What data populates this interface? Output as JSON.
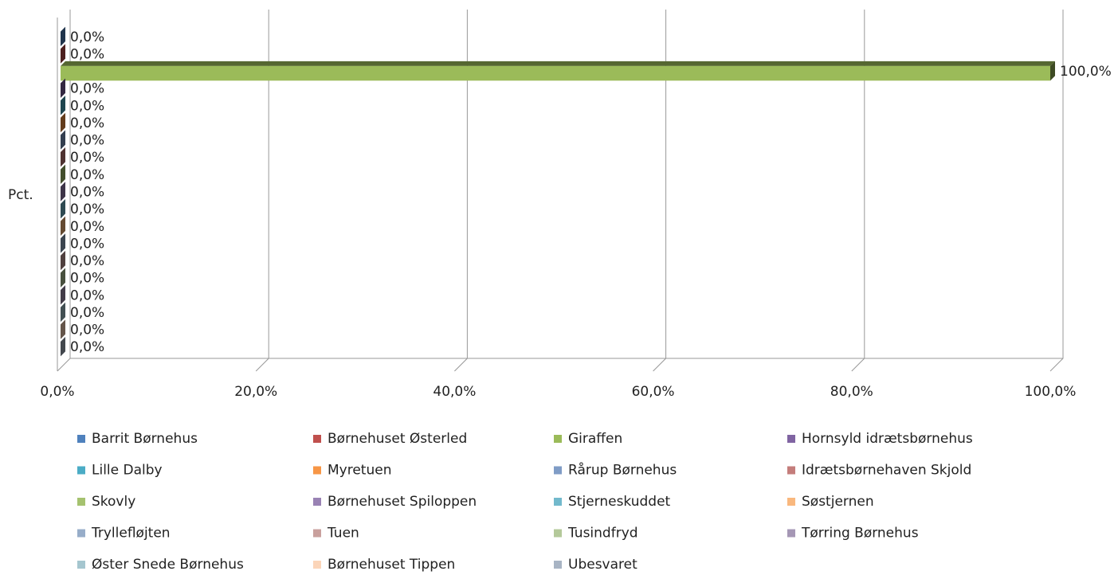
{
  "chart_data": {
    "type": "bar",
    "orientation": "horizontal",
    "ylabel": "Pct.",
    "categories": [
      null
    ],
    "xlim": [
      0,
      100
    ],
    "xticks": [
      {
        "value": 0,
        "label": "0,0%"
      },
      {
        "value": 20,
        "label": "20,0%"
      },
      {
        "value": 40,
        "label": "40,0%"
      },
      {
        "value": 60,
        "label": "60,0%"
      },
      {
        "value": 80,
        "label": "80,0%"
      },
      {
        "value": 100,
        "label": "100,0%"
      }
    ],
    "grid": true,
    "legend": "bottom",
    "series": [
      {
        "name": "Barrit Børnehus",
        "color": "#4f81bd",
        "values": [
          0
        ],
        "value_labels": [
          "0,0%"
        ]
      },
      {
        "name": "Børnehuset Østerled",
        "color": "#c0504d",
        "values": [
          0
        ],
        "value_labels": [
          "0,0%"
        ]
      },
      {
        "name": "Giraffen",
        "color": "#9bbb59",
        "values": [
          100
        ],
        "value_labels": [
          "100,0%"
        ]
      },
      {
        "name": "Hornsyld idrætsbørnehus",
        "color": "#8064a2",
        "values": [
          0
        ],
        "value_labels": [
          "0,0%"
        ]
      },
      {
        "name": "Lille Dalby",
        "color": "#4bacc6",
        "values": [
          0
        ],
        "value_labels": [
          "0,0%"
        ]
      },
      {
        "name": "Myretuen",
        "color": "#f79646",
        "values": [
          0
        ],
        "value_labels": [
          "0,0%"
        ]
      },
      {
        "name": "Rårup Børnehus",
        "color": "#7f9cc6",
        "values": [
          0
        ],
        "value_labels": [
          "0,0%"
        ]
      },
      {
        "name": "Idrætsbørnehaven Skjold",
        "color": "#c47d7b",
        "values": [
          0
        ],
        "value_labels": [
          "0,0%"
        ]
      },
      {
        "name": "Skovly",
        "color": "#a5c26f",
        "values": [
          0
        ],
        "value_labels": [
          "0,0%"
        ]
      },
      {
        "name": "Børnehuset Spiloppen",
        "color": "#9982b4",
        "values": [
          0
        ],
        "value_labels": [
          "0,0%"
        ]
      },
      {
        "name": "Stjerneskuddet",
        "color": "#72b9cc",
        "values": [
          0
        ],
        "value_labels": [
          "0,0%"
        ]
      },
      {
        "name": "Søstjernen",
        "color": "#f9b87e",
        "values": [
          0
        ],
        "value_labels": [
          "0,0%"
        ]
      },
      {
        "name": "Tryllefløjten",
        "color": "#97adc9",
        "values": [
          0
        ],
        "value_labels": [
          "0,0%"
        ]
      },
      {
        "name": "Tuen",
        "color": "#c9a09d",
        "values": [
          0
        ],
        "value_labels": [
          "0,0%"
        ]
      },
      {
        "name": "Tusindfryd",
        "color": "#b4c99a",
        "values": [
          0
        ],
        "value_labels": [
          "0,0%"
        ]
      },
      {
        "name": "Tørring Børnehus",
        "color": "#a597b5",
        "values": [
          0
        ],
        "value_labels": [
          "0,0%"
        ]
      },
      {
        "name": "Øster Snede Børnehus",
        "color": "#a5c6cf",
        "values": [
          0
        ],
        "value_labels": [
          "0,0%"
        ]
      },
      {
        "name": "Børnehuset Tippen",
        "color": "#fbd5b9",
        "values": [
          0
        ],
        "value_labels": [
          "0,0%"
        ]
      },
      {
        "name": "Ubesvaret",
        "color": "#a8b4c4",
        "values": [
          0
        ],
        "value_labels": [
          "0,0%"
        ]
      }
    ]
  }
}
